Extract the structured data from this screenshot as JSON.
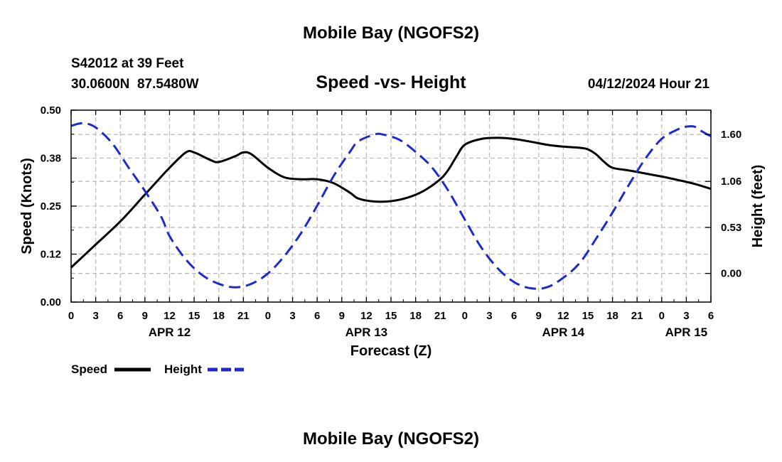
{
  "chart_data": {
    "type": "line",
    "title": "Mobile Bay (NGOFS2)",
    "subtitle": "Speed -vs- Height",
    "station": "S42012 at 39 Feet",
    "coords": "30.0600N  87.5480W",
    "datetime": "04/12/2024 Hour 21",
    "footer_title": "Mobile Bay (NGOFS2)",
    "xlabel": "Forecast (Z)",
    "ylabel": "Speed (Knots)",
    "y2label": "Height (feet)",
    "x_hours_range": [
      0,
      78
    ],
    "x_tick_step_hours": 3,
    "x_tick_labels": [
      "0",
      "3",
      "6",
      "9",
      "12",
      "15",
      "18",
      "21",
      "0",
      "3",
      "6",
      "9",
      "12",
      "15",
      "18",
      "21",
      "0",
      "3",
      "6",
      "9",
      "12",
      "15",
      "18",
      "21",
      "0",
      "3",
      "6"
    ],
    "date_labels": [
      {
        "label": "APR 12",
        "hour": 12
      },
      {
        "label": "APR 13",
        "hour": 36
      },
      {
        "label": "APR 14",
        "hour": 60
      },
      {
        "label": "APR 15",
        "hour": 75
      }
    ],
    "ylim": [
      0,
      0.5
    ],
    "y_ticks": [
      0.0,
      0.125,
      0.25,
      0.375,
      0.5
    ],
    "y_tick_labels": [
      "0.00",
      "0.12",
      "0.25",
      "0.38",
      "0.50"
    ],
    "y2lim": [
      -0.33,
      1.88
    ],
    "y2_ticks": [
      0.0,
      0.53,
      1.06,
      1.6
    ],
    "y2_tick_labels": [
      "0.00",
      "0.53",
      "1.06",
      "1.60"
    ],
    "grid": true,
    "series": [
      {
        "name": "Speed",
        "axis": "left",
        "color": "#000000",
        "style": "solid",
        "points": [
          [
            0,
            0.09
          ],
          [
            3,
            0.15
          ],
          [
            6,
            0.21
          ],
          [
            9,
            0.28
          ],
          [
            12,
            0.35
          ],
          [
            14,
            0.39
          ],
          [
            15,
            0.39
          ],
          [
            17,
            0.37
          ],
          [
            18,
            0.365
          ],
          [
            20,
            0.38
          ],
          [
            21,
            0.39
          ],
          [
            22,
            0.385
          ],
          [
            24,
            0.35
          ],
          [
            26,
            0.325
          ],
          [
            28,
            0.32
          ],
          [
            30,
            0.32
          ],
          [
            32,
            0.31
          ],
          [
            34,
            0.285
          ],
          [
            35,
            0.27
          ],
          [
            37,
            0.262
          ],
          [
            39,
            0.263
          ],
          [
            41,
            0.272
          ],
          [
            43,
            0.29
          ],
          [
            45,
            0.32
          ],
          [
            46,
            0.345
          ],
          [
            47,
            0.38
          ],
          [
            48,
            0.41
          ],
          [
            50,
            0.425
          ],
          [
            52,
            0.428
          ],
          [
            54,
            0.425
          ],
          [
            56,
            0.418
          ],
          [
            58,
            0.41
          ],
          [
            60,
            0.405
          ],
          [
            62,
            0.402
          ],
          [
            63,
            0.398
          ],
          [
            64,
            0.385
          ],
          [
            65,
            0.365
          ],
          [
            66,
            0.35
          ],
          [
            68,
            0.343
          ],
          [
            70,
            0.335
          ],
          [
            72,
            0.327
          ],
          [
            74,
            0.318
          ],
          [
            76,
            0.308
          ],
          [
            78,
            0.295
          ]
        ]
      },
      {
        "name": "Height",
        "axis": "right",
        "color": "#1f2acb",
        "style": "dashed",
        "points": [
          [
            0,
            1.7
          ],
          [
            1.5,
            1.73
          ],
          [
            3,
            1.68
          ],
          [
            5,
            1.5
          ],
          [
            7,
            1.22
          ],
          [
            9,
            0.95
          ],
          [
            11,
            0.65
          ],
          [
            12,
            0.43
          ],
          [
            14,
            0.16
          ],
          [
            16,
            -0.02
          ],
          [
            18,
            -0.12
          ],
          [
            20,
            -0.16
          ],
          [
            22,
            -0.12
          ],
          [
            24,
            0.0
          ],
          [
            26,
            0.2
          ],
          [
            28,
            0.46
          ],
          [
            30,
            0.78
          ],
          [
            32,
            1.12
          ],
          [
            34,
            1.4
          ],
          [
            35,
            1.52
          ],
          [
            37,
            1.6
          ],
          [
            38,
            1.6
          ],
          [
            40,
            1.54
          ],
          [
            42,
            1.4
          ],
          [
            44,
            1.22
          ],
          [
            46,
            0.95
          ],
          [
            48,
            0.62
          ],
          [
            50,
            0.3
          ],
          [
            52,
            0.06
          ],
          [
            54,
            -0.1
          ],
          [
            56,
            -0.17
          ],
          [
            58,
            -0.16
          ],
          [
            60,
            -0.05
          ],
          [
            62,
            0.12
          ],
          [
            64,
            0.4
          ],
          [
            66,
            0.7
          ],
          [
            68,
            1.02
          ],
          [
            70,
            1.32
          ],
          [
            72,
            1.55
          ],
          [
            74,
            1.66
          ],
          [
            75,
            1.69
          ],
          [
            76,
            1.69
          ],
          [
            77,
            1.63
          ],
          [
            78,
            1.58
          ]
        ]
      }
    ],
    "legend": [
      {
        "label": "Speed",
        "color": "#000000",
        "style": "solid"
      },
      {
        "label": "Height",
        "color": "#1f2acb",
        "style": "dashed"
      }
    ],
    "legend_position": "bottom-left"
  }
}
